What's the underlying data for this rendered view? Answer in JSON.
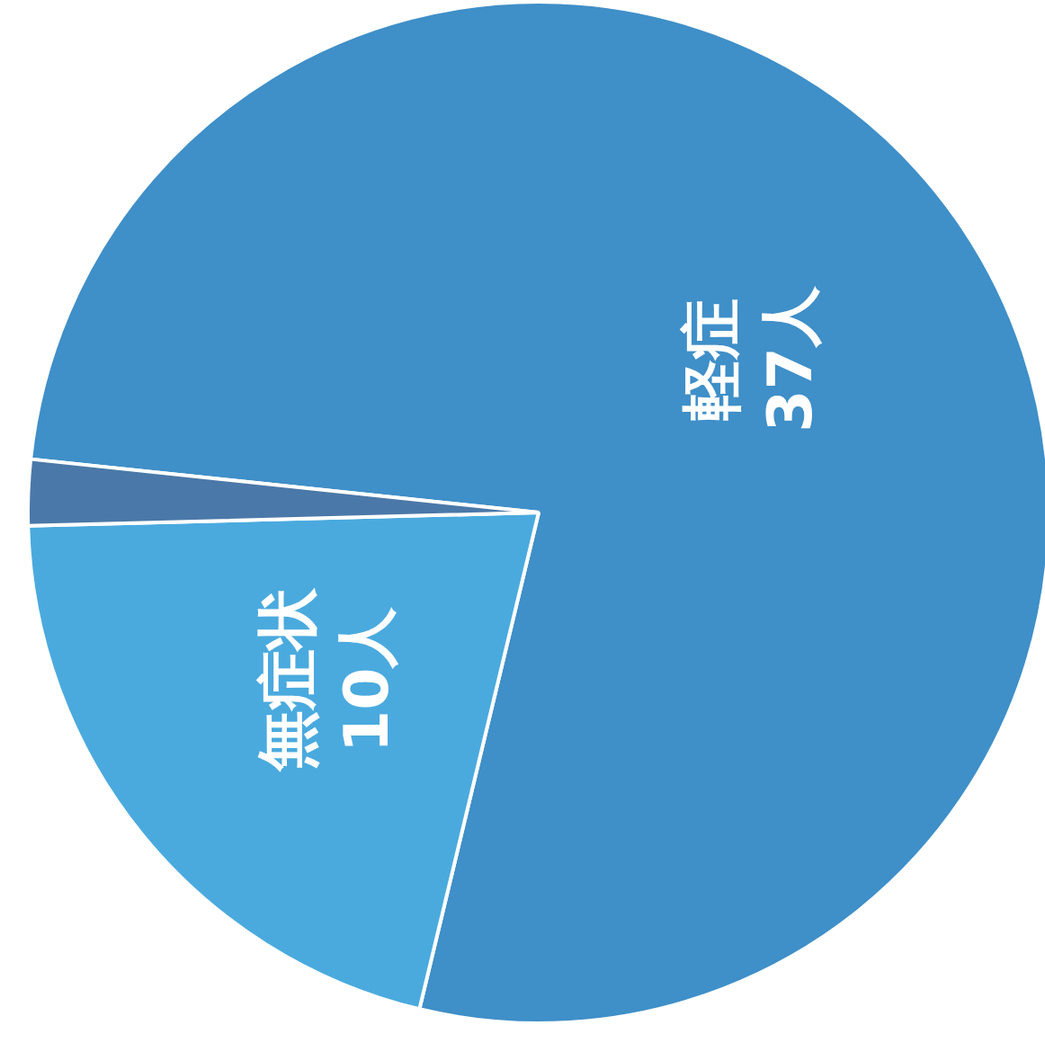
{
  "chart_data": {
    "type": "pie",
    "categories": [
      "軽症",
      "無症状",
      null
    ],
    "values": [
      37,
      10,
      1
    ],
    "colors": [
      "#3f8fc8",
      "#4aaade",
      "#4a78a8"
    ],
    "value_labels": [
      "37人",
      "10人",
      null
    ]
  }
}
